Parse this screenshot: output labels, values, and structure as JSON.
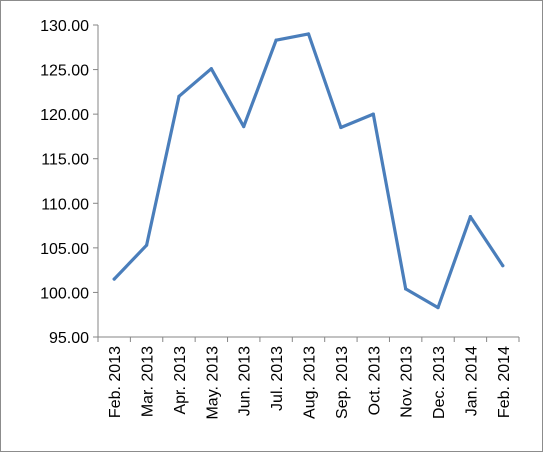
{
  "chart_data": {
    "type": "line",
    "title": "",
    "xlabel": "",
    "ylabel": "",
    "ylim": [
      95,
      130
    ],
    "y_ticks": [
      "95.00",
      "100.00",
      "105.00",
      "110.00",
      "115.00",
      "120.00",
      "125.00",
      "130.00"
    ],
    "categories": [
      "Feb. 2013",
      "Mar. 2013",
      "Apr. 2013",
      "May. 2013",
      "Jun. 2013",
      "Jul. 2013",
      "Aug. 2013",
      "Sep. 2013",
      "Oct. 2013",
      "Nov. 2013",
      "Dec. 2013",
      "Jan. 2014",
      "Feb. 2014"
    ],
    "series": [
      {
        "values": [
          101.5,
          105.3,
          122.0,
          125.1,
          118.6,
          128.3,
          129.0,
          118.5,
          120.0,
          100.4,
          98.3,
          108.5,
          103.0
        ],
        "color": "#4a7ebb"
      }
    ],
    "grid": false,
    "legend": "none"
  }
}
